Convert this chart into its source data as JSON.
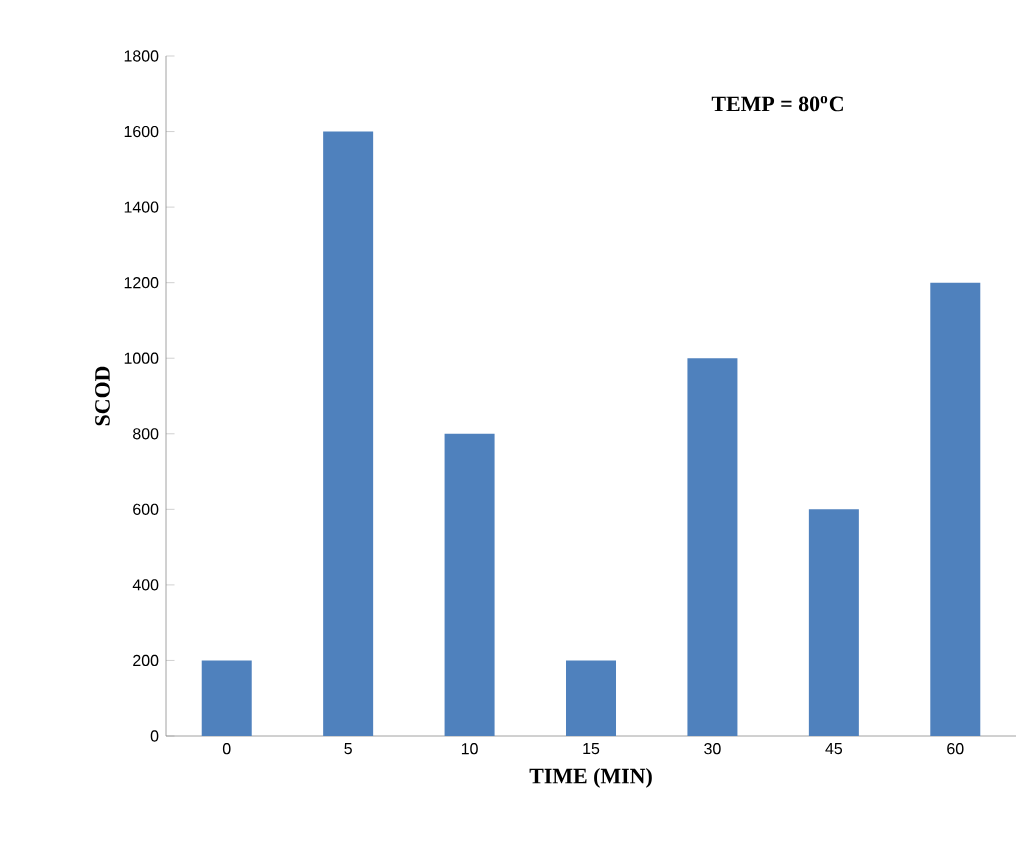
{
  "chart_data": {
    "type": "bar",
    "xlabel": "TIME (MIN)",
    "ylabel": "SCOD",
    "categories": [
      "0",
      "5",
      "10",
      "15",
      "30",
      "45",
      "60"
    ],
    "values": [
      200,
      1600,
      800,
      200,
      1000,
      600,
      1200
    ],
    "color": "#4f81bd",
    "ylim": [
      0,
      1800
    ],
    "yticks": [
      0,
      200,
      400,
      600,
      800,
      1000,
      1200,
      1400,
      1600,
      1800
    ],
    "annotations": [
      "TEMP = 80$^{o}$C"
    ],
    "grid": false
  }
}
